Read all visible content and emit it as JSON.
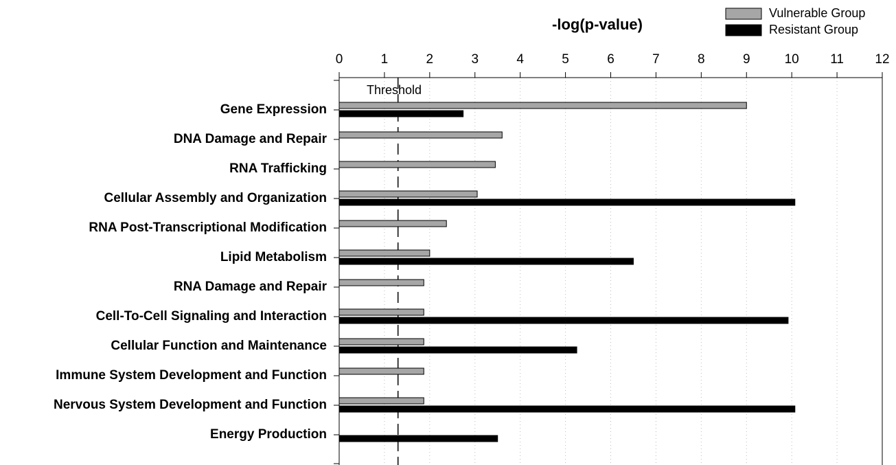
{
  "chart_data": {
    "type": "hbar",
    "title": "-log(p-value)",
    "categories": [
      "Gene Expression",
      "DNA Damage and Repair",
      "RNA Trafficking",
      "Cellular Assembly and Organization",
      "RNA Post-Transcriptional Modification",
      "Lipid Metabolism",
      "RNA Damage and Repair",
      "Cell-To-Cell Signaling and Interaction",
      "Cellular Function and Maintenance",
      "Immune System Development and Function",
      "Nervous System Development and Function",
      "Energy Production"
    ],
    "series": [
      {
        "name": "Vulnerable Group",
        "color": "#a6a6a6",
        "values": [
          9.0,
          3.6,
          3.45,
          3.05,
          2.37,
          2.0,
          1.87,
          1.87,
          1.87,
          1.87,
          1.87,
          null
        ]
      },
      {
        "name": "Resistant Group",
        "color": "#000000",
        "values": [
          2.74,
          null,
          null,
          10.07,
          null,
          6.5,
          null,
          9.92,
          5.25,
          null,
          10.07,
          3.5
        ]
      }
    ],
    "xlim": [
      0,
      12
    ],
    "xticks": [
      0,
      1,
      2,
      3,
      4,
      5,
      6,
      7,
      8,
      9,
      10,
      11,
      12
    ],
    "grid": true,
    "threshold": {
      "value": 1.3,
      "label": "Threshold"
    },
    "legend": "top-right"
  }
}
